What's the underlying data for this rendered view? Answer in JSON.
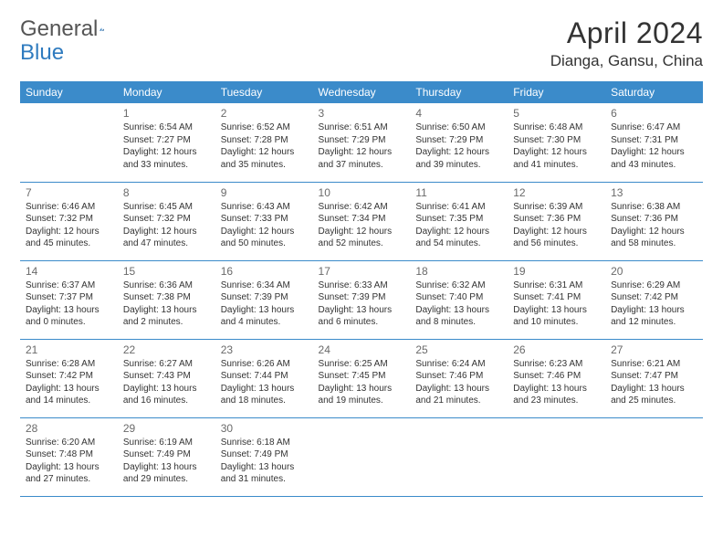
{
  "logo": {
    "word1": "General",
    "word2": "Blue"
  },
  "title": "April 2024",
  "location": "Dianga, Gansu, China",
  "colors": {
    "header_bg": "#3b8bca",
    "header_text": "#ffffff",
    "border": "#3b8bca",
    "cell_text": "#333333",
    "daynum": "#6a6a6a",
    "logo_gray": "#555555",
    "logo_blue": "#2f7bbf",
    "background": "#ffffff"
  },
  "typography": {
    "title_fontsize": 32,
    "location_fontsize": 17,
    "header_fontsize": 12,
    "cell_fontsize": 10,
    "daynum_fontsize": 12
  },
  "weekdays": [
    "Sunday",
    "Monday",
    "Tuesday",
    "Wednesday",
    "Thursday",
    "Friday",
    "Saturday"
  ],
  "weeks": [
    [
      {
        "day": "",
        "sunrise": "",
        "sunset": "",
        "daylight": ""
      },
      {
        "day": "1",
        "sunrise": "Sunrise: 6:54 AM",
        "sunset": "Sunset: 7:27 PM",
        "daylight": "Daylight: 12 hours and 33 minutes."
      },
      {
        "day": "2",
        "sunrise": "Sunrise: 6:52 AM",
        "sunset": "Sunset: 7:28 PM",
        "daylight": "Daylight: 12 hours and 35 minutes."
      },
      {
        "day": "3",
        "sunrise": "Sunrise: 6:51 AM",
        "sunset": "Sunset: 7:29 PM",
        "daylight": "Daylight: 12 hours and 37 minutes."
      },
      {
        "day": "4",
        "sunrise": "Sunrise: 6:50 AM",
        "sunset": "Sunset: 7:29 PM",
        "daylight": "Daylight: 12 hours and 39 minutes."
      },
      {
        "day": "5",
        "sunrise": "Sunrise: 6:48 AM",
        "sunset": "Sunset: 7:30 PM",
        "daylight": "Daylight: 12 hours and 41 minutes."
      },
      {
        "day": "6",
        "sunrise": "Sunrise: 6:47 AM",
        "sunset": "Sunset: 7:31 PM",
        "daylight": "Daylight: 12 hours and 43 minutes."
      }
    ],
    [
      {
        "day": "7",
        "sunrise": "Sunrise: 6:46 AM",
        "sunset": "Sunset: 7:32 PM",
        "daylight": "Daylight: 12 hours and 45 minutes."
      },
      {
        "day": "8",
        "sunrise": "Sunrise: 6:45 AM",
        "sunset": "Sunset: 7:32 PM",
        "daylight": "Daylight: 12 hours and 47 minutes."
      },
      {
        "day": "9",
        "sunrise": "Sunrise: 6:43 AM",
        "sunset": "Sunset: 7:33 PM",
        "daylight": "Daylight: 12 hours and 50 minutes."
      },
      {
        "day": "10",
        "sunrise": "Sunrise: 6:42 AM",
        "sunset": "Sunset: 7:34 PM",
        "daylight": "Daylight: 12 hours and 52 minutes."
      },
      {
        "day": "11",
        "sunrise": "Sunrise: 6:41 AM",
        "sunset": "Sunset: 7:35 PM",
        "daylight": "Daylight: 12 hours and 54 minutes."
      },
      {
        "day": "12",
        "sunrise": "Sunrise: 6:39 AM",
        "sunset": "Sunset: 7:36 PM",
        "daylight": "Daylight: 12 hours and 56 minutes."
      },
      {
        "day": "13",
        "sunrise": "Sunrise: 6:38 AM",
        "sunset": "Sunset: 7:36 PM",
        "daylight": "Daylight: 12 hours and 58 minutes."
      }
    ],
    [
      {
        "day": "14",
        "sunrise": "Sunrise: 6:37 AM",
        "sunset": "Sunset: 7:37 PM",
        "daylight": "Daylight: 13 hours and 0 minutes."
      },
      {
        "day": "15",
        "sunrise": "Sunrise: 6:36 AM",
        "sunset": "Sunset: 7:38 PM",
        "daylight": "Daylight: 13 hours and 2 minutes."
      },
      {
        "day": "16",
        "sunrise": "Sunrise: 6:34 AM",
        "sunset": "Sunset: 7:39 PM",
        "daylight": "Daylight: 13 hours and 4 minutes."
      },
      {
        "day": "17",
        "sunrise": "Sunrise: 6:33 AM",
        "sunset": "Sunset: 7:39 PM",
        "daylight": "Daylight: 13 hours and 6 minutes."
      },
      {
        "day": "18",
        "sunrise": "Sunrise: 6:32 AM",
        "sunset": "Sunset: 7:40 PM",
        "daylight": "Daylight: 13 hours and 8 minutes."
      },
      {
        "day": "19",
        "sunrise": "Sunrise: 6:31 AM",
        "sunset": "Sunset: 7:41 PM",
        "daylight": "Daylight: 13 hours and 10 minutes."
      },
      {
        "day": "20",
        "sunrise": "Sunrise: 6:29 AM",
        "sunset": "Sunset: 7:42 PM",
        "daylight": "Daylight: 13 hours and 12 minutes."
      }
    ],
    [
      {
        "day": "21",
        "sunrise": "Sunrise: 6:28 AM",
        "sunset": "Sunset: 7:42 PM",
        "daylight": "Daylight: 13 hours and 14 minutes."
      },
      {
        "day": "22",
        "sunrise": "Sunrise: 6:27 AM",
        "sunset": "Sunset: 7:43 PM",
        "daylight": "Daylight: 13 hours and 16 minutes."
      },
      {
        "day": "23",
        "sunrise": "Sunrise: 6:26 AM",
        "sunset": "Sunset: 7:44 PM",
        "daylight": "Daylight: 13 hours and 18 minutes."
      },
      {
        "day": "24",
        "sunrise": "Sunrise: 6:25 AM",
        "sunset": "Sunset: 7:45 PM",
        "daylight": "Daylight: 13 hours and 19 minutes."
      },
      {
        "day": "25",
        "sunrise": "Sunrise: 6:24 AM",
        "sunset": "Sunset: 7:46 PM",
        "daylight": "Daylight: 13 hours and 21 minutes."
      },
      {
        "day": "26",
        "sunrise": "Sunrise: 6:23 AM",
        "sunset": "Sunset: 7:46 PM",
        "daylight": "Daylight: 13 hours and 23 minutes."
      },
      {
        "day": "27",
        "sunrise": "Sunrise: 6:21 AM",
        "sunset": "Sunset: 7:47 PM",
        "daylight": "Daylight: 13 hours and 25 minutes."
      }
    ],
    [
      {
        "day": "28",
        "sunrise": "Sunrise: 6:20 AM",
        "sunset": "Sunset: 7:48 PM",
        "daylight": "Daylight: 13 hours and 27 minutes."
      },
      {
        "day": "29",
        "sunrise": "Sunrise: 6:19 AM",
        "sunset": "Sunset: 7:49 PM",
        "daylight": "Daylight: 13 hours and 29 minutes."
      },
      {
        "day": "30",
        "sunrise": "Sunrise: 6:18 AM",
        "sunset": "Sunset: 7:49 PM",
        "daylight": "Daylight: 13 hours and 31 minutes."
      },
      {
        "day": "",
        "sunrise": "",
        "sunset": "",
        "daylight": ""
      },
      {
        "day": "",
        "sunrise": "",
        "sunset": "",
        "daylight": ""
      },
      {
        "day": "",
        "sunrise": "",
        "sunset": "",
        "daylight": ""
      },
      {
        "day": "",
        "sunrise": "",
        "sunset": "",
        "daylight": ""
      }
    ]
  ]
}
